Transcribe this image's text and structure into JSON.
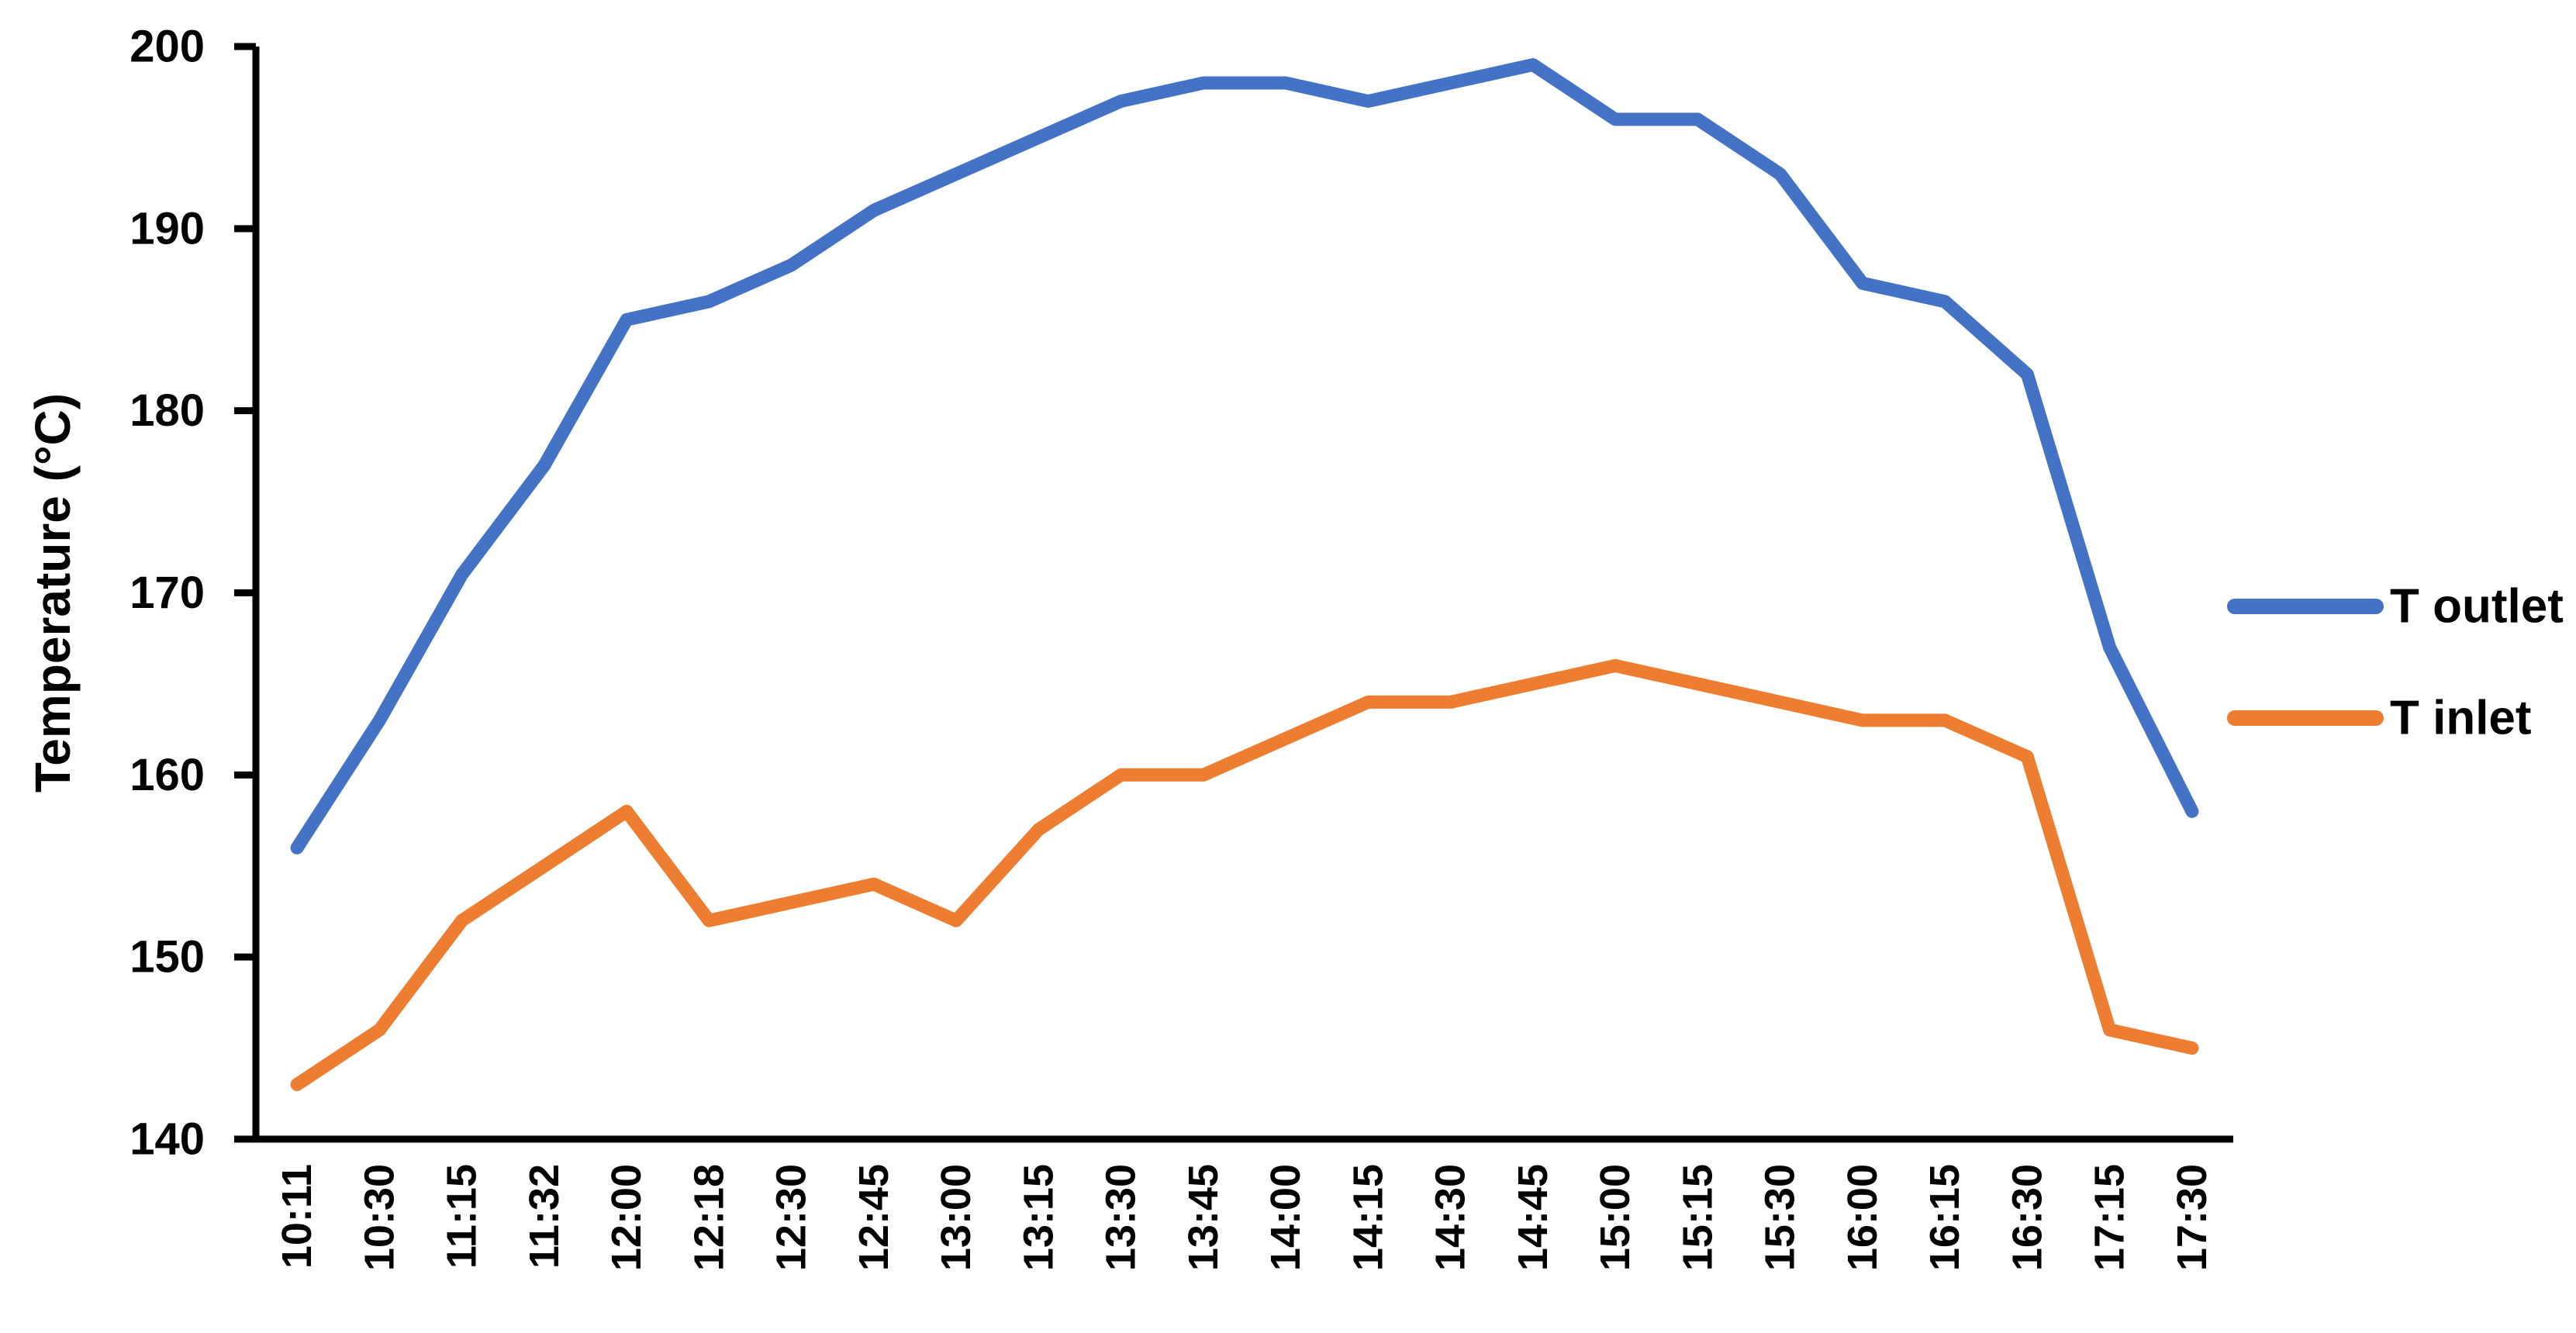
{
  "chart_data": {
    "type": "line",
    "title": "",
    "xlabel": "",
    "ylabel": "Temperature (°C)",
    "ylim": [
      140,
      200
    ],
    "yticks": [
      140,
      150,
      160,
      170,
      180,
      190,
      200
    ],
    "grid": false,
    "legend_position": "right",
    "background": "#FFFFFF",
    "axis_color": "#000000",
    "categories": [
      "10:11",
      "10:30",
      "11:15",
      "11:32",
      "12:00",
      "12:18",
      "12:30",
      "12:45",
      "13:00",
      "13:15",
      "13:30",
      "13:45",
      "14:00",
      "14:15",
      "14:30",
      "14:45",
      "15:00",
      "15:15",
      "15:30",
      "16:00",
      "16:15",
      "16:30",
      "17:15",
      "17:30"
    ],
    "series": [
      {
        "name": "T outlet",
        "color": "#4472C4",
        "values": [
          156,
          163,
          171,
          177,
          185,
          186,
          188,
          191,
          193,
          195,
          197,
          198,
          198,
          197,
          198,
          199,
          196,
          196,
          193,
          187,
          186,
          182,
          167,
          158
        ]
      },
      {
        "name": "T inlet",
        "color": "#ED7D31",
        "values": [
          143,
          146,
          152,
          155,
          158,
          152,
          153,
          154,
          152,
          157,
          160,
          160,
          162,
          164,
          164,
          165,
          166,
          165,
          164,
          163,
          163,
          161,
          146,
          145
        ]
      }
    ]
  }
}
